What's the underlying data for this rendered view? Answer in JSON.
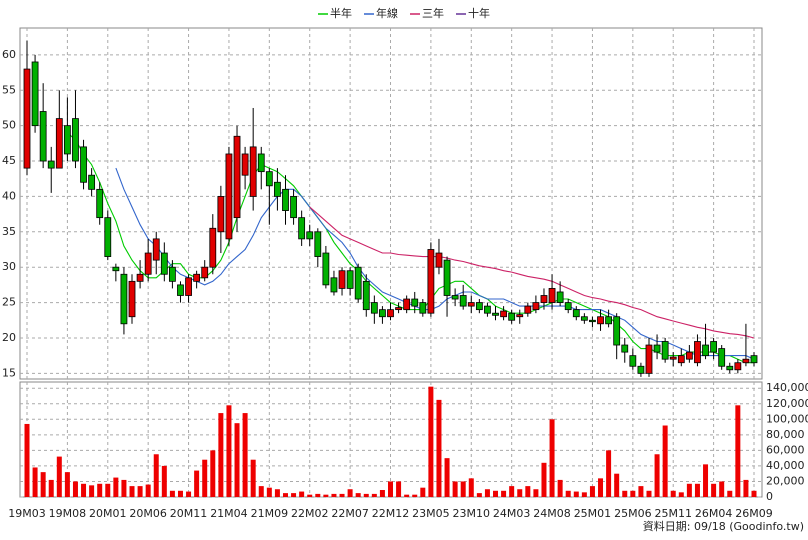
{
  "chart_data": {
    "type": "candlestick",
    "grid": true,
    "up_color": "#e00000",
    "down_color": "#00b000",
    "ylim": [
      14.2,
      63.8
    ],
    "yticks": [
      15,
      20,
      25,
      30,
      35,
      40,
      45,
      50,
      55,
      60
    ],
    "categories": [
      "19M03",
      null,
      null,
      null,
      null,
      "19M08",
      null,
      null,
      null,
      null,
      "20M01",
      null,
      null,
      null,
      null,
      "20M06",
      null,
      null,
      null,
      null,
      "20M11",
      null,
      null,
      null,
      null,
      "21M04",
      null,
      null,
      null,
      null,
      "21M09",
      null,
      null,
      null,
      null,
      "22M02",
      null,
      null,
      null,
      null,
      "22M07",
      null,
      null,
      null,
      null,
      "22M12",
      null,
      null,
      null,
      null,
      "23M05",
      null,
      null,
      null,
      null,
      "23M10",
      null,
      null,
      null,
      null,
      "24M03",
      null,
      null,
      null,
      null,
      "24M08",
      null,
      null,
      null,
      null,
      "25M01",
      null,
      null,
      null,
      null,
      "25M06",
      null,
      null,
      null,
      null,
      "25M11",
      null,
      null,
      null,
      null,
      "26M04",
      null,
      null,
      null,
      null,
      "26M09"
    ],
    "open": [
      44,
      59,
      52,
      45,
      44,
      50,
      51,
      47,
      43,
      41,
      37,
      30,
      29,
      23,
      28,
      29,
      31,
      32,
      30,
      27.5,
      26,
      28,
      28.5,
      30,
      35,
      34,
      37,
      43,
      40,
      46,
      43.5,
      42,
      41,
      40,
      37,
      35,
      35,
      32,
      28.5,
      27,
      29.5,
      30,
      28,
      25,
      24,
      23,
      24,
      24,
      25.5,
      25,
      23.5,
      30,
      31,
      26,
      26,
      24.5,
      25,
      24.5,
      23.5,
      23,
      23.5,
      23,
      23.5,
      24,
      25,
      25,
      26.5,
      25,
      24,
      23,
      22.5,
      22,
      23,
      23,
      19,
      17.5,
      16,
      15,
      19,
      19.5,
      17,
      16.5,
      17,
      16.5,
      19,
      19.5,
      18.5,
      16,
      15.5,
      16.5,
      17.5
    ],
    "high": [
      62,
      60,
      56,
      47,
      55,
      54,
      55,
      48,
      44,
      42,
      38,
      30.5,
      30,
      29,
      31,
      34,
      35,
      33.5,
      31,
      28,
      29,
      29.5,
      31,
      37.5,
      41.5,
      47,
      50,
      47,
      52.5,
      47,
      44,
      44,
      43,
      41,
      38,
      36,
      35.5,
      33,
      29.5,
      30,
      30,
      30.5,
      29,
      26,
      24.5,
      25,
      25,
      26,
      26.5,
      25.5,
      33.5,
      34,
      31.5,
      27,
      27.5,
      26,
      25.5,
      25,
      24.5,
      24.5,
      24,
      24,
      25,
      26,
      27,
      29,
      28,
      25.5,
      24.5,
      23.5,
      23,
      24,
      24,
      23.5,
      20,
      18.5,
      16.5,
      20,
      20.5,
      20,
      18,
      18.5,
      19,
      20.5,
      22,
      20,
      19,
      16.5,
      17,
      22,
      18
    ],
    "low": [
      43,
      49,
      44,
      40.5,
      44,
      45,
      44,
      41,
      40,
      36,
      31,
      28,
      20.5,
      22,
      27,
      28,
      29,
      28,
      27,
      25,
      25,
      27,
      28,
      29,
      32,
      33,
      35,
      41,
      38,
      41,
      36,
      38,
      36,
      36,
      33,
      33,
      30,
      27,
      26,
      26,
      26,
      25,
      23,
      22,
      22,
      22.5,
      23.5,
      23.5,
      23.5,
      23,
      23,
      29,
      23,
      24.5,
      24,
      23.5,
      23.5,
      23,
      22.5,
      22.5,
      22,
      22,
      23,
      23.5,
      24,
      24,
      24.5,
      23.5,
      22.5,
      22,
      21.5,
      21,
      21.5,
      17,
      16.5,
      15.5,
      14.5,
      14.5,
      17,
      16.5,
      16,
      16,
      16.5,
      16,
      17,
      17,
      15.5,
      15,
      15,
      16,
      16
    ],
    "close": [
      58,
      50,
      45,
      44,
      51,
      46,
      45,
      42,
      41,
      37,
      31.5,
      29.5,
      22,
      28,
      29,
      32,
      34,
      29,
      28,
      26,
      28.5,
      29,
      30,
      35.5,
      40,
      46,
      48.5,
      46,
      47,
      43.5,
      41.5,
      40,
      38,
      37,
      34,
      34,
      31.5,
      27.5,
      26.5,
      29.5,
      27,
      25.5,
      24,
      23.5,
      23,
      24,
      24.3,
      25.5,
      24.5,
      23.5,
      32.5,
      32,
      26,
      25.5,
      24.5,
      25,
      24,
      23.5,
      23.2,
      23.8,
      22.5,
      23.3,
      24.5,
      25,
      26,
      27,
      25,
      24,
      23,
      22.5,
      22.3,
      23,
      22,
      19,
      18,
      16,
      15,
      19,
      18,
      17,
      17.3,
      17.5,
      18,
      19.5,
      17.5,
      18,
      16,
      15.5,
      16.5,
      17,
      16.5
    ],
    "series": [
      {
        "name": "半年",
        "color": "#00cc00",
        "values": [
          null,
          null,
          null,
          null,
          null,
          49,
          48,
          46,
          44.5,
          42,
          39,
          36.5,
          33,
          31,
          29.5,
          28.5,
          28.5,
          29.5,
          30.5,
          30.5,
          29,
          28.5,
          28.5,
          29.5,
          31,
          33.5,
          37,
          40,
          43,
          44.5,
          44,
          43.5,
          42.5,
          41.5,
          40,
          38.5,
          37,
          35.5,
          33.5,
          32,
          30.5,
          29.5,
          28,
          27,
          26,
          25,
          24.5,
          24,
          24,
          24,
          25.5,
          27,
          27.5,
          28,
          28,
          27,
          26,
          25.5,
          24.5,
          24,
          23.5,
          23.5,
          23.5,
          24,
          24.5,
          25,
          25.5,
          25.5,
          25,
          24.5,
          24,
          23.5,
          23,
          22,
          21,
          19.5,
          18.5,
          18.5,
          18,
          17.5,
          17.5,
          17.5,
          18,
          18,
          18,
          18,
          17.5,
          17.5,
          17,
          16.5,
          16.5
        ]
      },
      {
        "name": "年線",
        "color": "#3366cc",
        "values": [
          null,
          null,
          null,
          null,
          null,
          null,
          null,
          null,
          null,
          null,
          null,
          44,
          41,
          38.5,
          36,
          34,
          33,
          31.5,
          30,
          29,
          28.5,
          28,
          27.5,
          28,
          29,
          30.5,
          31.5,
          32.5,
          34.5,
          37,
          38.5,
          40,
          41,
          41,
          40,
          38.5,
          37,
          35.5,
          34.5,
          33.5,
          32,
          30,
          28.5,
          27.5,
          26.5,
          26,
          25.5,
          25,
          24.5,
          24,
          24,
          24.5,
          25.5,
          26,
          26.5,
          26.5,
          26,
          25.5,
          25.5,
          25.5,
          25,
          24.5,
          24.5,
          24.5,
          24.5,
          24.5,
          24.5,
          24.5,
          24,
          24,
          24,
          24,
          23.5,
          23,
          22.5,
          21.5,
          20.5,
          20,
          19.5,
          19.5,
          19,
          18.5,
          18,
          17.5,
          17.5,
          17.5,
          17.5,
          17.5,
          17.5,
          17.5,
          17
        ]
      },
      {
        "name": "三年",
        "color": "#cc2266",
        "values": [
          null,
          null,
          null,
          null,
          null,
          null,
          null,
          null,
          null,
          null,
          null,
          null,
          null,
          null,
          null,
          null,
          null,
          null,
          null,
          null,
          null,
          null,
          null,
          null,
          null,
          null,
          null,
          null,
          null,
          null,
          null,
          null,
          null,
          null,
          null,
          38.5,
          37.5,
          36.5,
          35.5,
          34.5,
          34,
          33.5,
          33,
          32.5,
          32,
          32,
          31.8,
          31.7,
          31.6,
          31.5,
          31.5,
          31.5,
          31.3,
          31,
          30.8,
          30.5,
          30.2,
          30,
          29.8,
          29.5,
          29.3,
          29,
          28.7,
          28.5,
          28.3,
          28,
          27.5,
          27,
          26.5,
          26,
          25.7,
          25.5,
          25.2,
          25,
          24.7,
          24.3,
          24,
          23.5,
          23,
          22.7,
          22.4,
          22.1,
          21.8,
          21.5,
          21.3,
          21,
          20.8,
          20.6,
          20.5,
          20.3,
          20
        ]
      },
      {
        "name": "十年",
        "color": "#663399",
        "values": [
          null,
          null,
          null,
          null,
          null,
          null,
          null,
          null,
          null,
          null,
          null,
          null,
          null,
          null,
          null,
          null,
          null,
          null,
          null,
          null,
          null,
          null,
          null,
          null,
          null,
          null,
          null,
          null,
          null,
          null,
          null,
          null,
          null,
          null,
          null,
          null,
          null,
          null,
          null,
          null,
          null,
          null,
          null,
          null,
          null,
          null,
          null,
          null,
          null,
          null,
          null,
          null,
          null,
          null,
          null,
          null,
          null,
          null,
          null,
          null,
          null,
          null,
          null,
          null,
          null,
          null,
          null,
          null,
          null,
          null,
          null,
          null,
          null,
          null,
          null,
          null,
          null,
          null,
          null,
          null,
          null,
          null,
          null,
          null,
          null,
          null,
          null,
          null,
          null,
          null,
          null
        ]
      }
    ],
    "volume": {
      "type": "bar",
      "color": "#ee0000",
      "ylim": [
        0,
        148000
      ],
      "yticks": [
        0,
        {
          "value": 20000,
          "label": "20,000"
        },
        {
          "value": 40000,
          "label": "40,000"
        },
        {
          "value": 60000,
          "label": "60,000"
        },
        {
          "value": 80000,
          "label": "80,000"
        },
        {
          "value": 100000,
          "label": "100,000"
        },
        {
          "value": 120000,
          "label": "120,000"
        },
        {
          "value": 140000,
          "label": "140,000"
        }
      ],
      "values": [
        94000,
        38000,
        32000,
        22000,
        52000,
        32000,
        20000,
        17000,
        15000,
        17000,
        17000,
        25000,
        22000,
        14000,
        14000,
        16000,
        55000,
        40000,
        8000,
        8000,
        7000,
        34000,
        48000,
        60000,
        108000,
        118000,
        95000,
        108000,
        48000,
        14000,
        12000,
        10000,
        5000,
        5000,
        7000,
        3000,
        4000,
        3000,
        4000,
        4000,
        10000,
        5000,
        4000,
        4000,
        9000,
        20000,
        20000,
        3000,
        3000,
        12000,
        142000,
        125000,
        50000,
        20000,
        20000,
        24000,
        5000,
        10000,
        8000,
        8000,
        14000,
        10000,
        14000,
        10000,
        44000,
        100000,
        22000,
        8000,
        7000,
        6000,
        14000,
        24000,
        60000,
        30000,
        8000,
        8000,
        14000,
        8000,
        55000,
        92000,
        8000,
        6000,
        17000,
        17000,
        42000,
        17000,
        20000,
        8000,
        118000,
        22000,
        8000
      ]
    }
  },
  "footer": "資料日期: 09/18 (Goodinfo.tw)"
}
